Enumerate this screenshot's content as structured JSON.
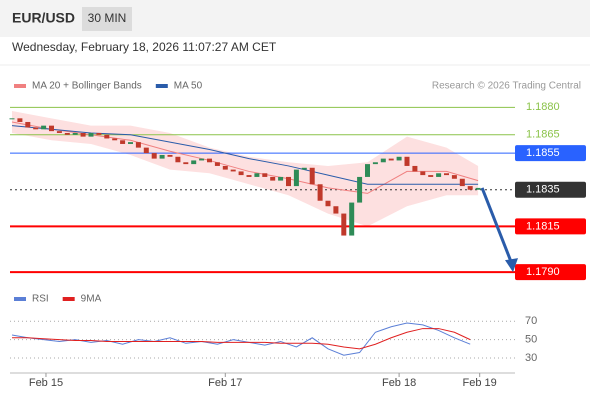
{
  "header": {
    "symbol": "EUR/USD",
    "interval": "30 MIN",
    "timestamp": "Wednesday, February 18, 2026 11:07:27 AM CET"
  },
  "chart_data": [
    {
      "type": "candlestick",
      "note": "Research © 2026 Trading Central",
      "values": [
        1.1874,
        1.1872,
        1.1869,
        1.1868,
        1.187,
        1.1867,
        1.1866,
        1.1865,
        1.1866,
        1.1864,
        1.1866,
        1.1865,
        1.1863,
        1.1862,
        1.186,
        1.1861,
        1.1858,
        1.1855,
        1.1852,
        1.1854,
        1.1853,
        1.185,
        1.1849,
        1.1851,
        1.1852,
        1.185,
        1.1848,
        1.1846,
        1.1845,
        1.1843,
        1.1842,
        1.1844,
        1.1842,
        1.184,
        1.1842,
        1.1837,
        1.1846,
        1.1847,
        1.1838,
        1.1829,
        1.1826,
        1.1822,
        1.181,
        1.1828,
        1.1842,
        1.1849,
        1.185,
        1.1852,
        1.1851,
        1.1853,
        1.1848,
        1.1845,
        1.1843,
        1.1842,
        1.1844,
        1.1843,
        1.1841,
        1.1837,
        1.1835,
        1.1836
      ],
      "up_color": "#2e8b57",
      "down_color": "#c0392b",
      "series": [
        {
          "name": "MA 20 + Bollinger Bands",
          "color": "#f08080",
          "band_color": "#fde0e0",
          "x": [
            0,
            5,
            10,
            15,
            20,
            25,
            30,
            35,
            40,
            45,
            50,
            55,
            59
          ],
          "values": [
            1.1872,
            1.1868,
            1.1865,
            1.1862,
            1.1856,
            1.1851,
            1.1845,
            1.1841,
            1.1836,
            1.1833,
            1.1845,
            1.1845,
            1.184
          ],
          "upper": [
            1.1878,
            1.1874,
            1.187,
            1.187,
            1.1866,
            1.1858,
            1.1853,
            1.185,
            1.1848,
            1.185,
            1.1864,
            1.1858,
            1.1848
          ],
          "lower": [
            1.1866,
            1.1862,
            1.186,
            1.1854,
            1.1846,
            1.1844,
            1.1838,
            1.1832,
            1.1822,
            1.1815,
            1.1826,
            1.1832,
            1.1832
          ]
        },
        {
          "name": "MA 50",
          "color": "#2a5caa",
          "x": [
            0,
            5,
            10,
            15,
            20,
            25,
            30,
            35,
            40,
            45,
            50,
            55,
            59
          ],
          "values": [
            1.187,
            1.1868,
            1.1866,
            1.1865,
            1.1861,
            1.1857,
            1.1852,
            1.1848,
            1.1843,
            1.1838,
            1.1838,
            1.1838,
            1.1838
          ]
        }
      ],
      "xlim": [
        0,
        64
      ],
      "ylim": [
        1.1783,
        1.1884
      ],
      "yticks": [
        {
          "value": 1.188,
          "label": "1.1880"
        },
        {
          "value": 1.1865,
          "label": "1.1865"
        },
        {
          "value": 1.1855,
          "label": "1.1855"
        },
        {
          "value": 1.1835,
          "label": "1.1835"
        },
        {
          "value": 1.1815,
          "label": "1.1815"
        },
        {
          "value": 1.179,
          "label": "1.1790"
        }
      ],
      "level_colors": [
        "#8bc34a",
        "#8bc34a",
        "#2962ff",
        "#333333",
        "#ff0000",
        "#ff0000"
      ],
      "level_boxed": [
        false,
        false,
        true,
        true,
        true,
        true
      ],
      "level_line": [
        "solid",
        "solid",
        "solid",
        "dotted",
        "solid",
        "solid"
      ],
      "arrow_color": "#2a5caa"
    },
    {
      "type": "line",
      "series": [
        {
          "name": "RSI",
          "color": "#5b7fd6",
          "x": [
            0,
            2,
            4,
            6,
            8,
            10,
            12,
            14,
            16,
            18,
            20,
            22,
            24,
            26,
            28,
            30,
            32,
            34,
            36,
            38,
            40,
            42,
            44,
            46,
            48,
            50,
            52,
            54,
            56,
            58
          ],
          "values": [
            55,
            52,
            50,
            48,
            50,
            47,
            49,
            45,
            50,
            48,
            52,
            46,
            48,
            45,
            50,
            47,
            44,
            48,
            42,
            52,
            40,
            33,
            36,
            58,
            64,
            68,
            66,
            60,
            52,
            45
          ]
        },
        {
          "name": "9MA",
          "color": "#e02020",
          "x": [
            0,
            2,
            4,
            6,
            8,
            10,
            12,
            14,
            16,
            18,
            20,
            22,
            24,
            26,
            28,
            30,
            32,
            34,
            36,
            38,
            40,
            42,
            44,
            46,
            48,
            50,
            52,
            54,
            56,
            58
          ],
          "values": [
            52,
            52,
            51,
            50,
            49,
            49,
            48,
            48,
            48,
            48,
            48,
            48,
            48,
            47,
            47,
            47,
            47,
            46,
            46,
            46,
            45,
            42,
            40,
            45,
            52,
            58,
            62,
            62,
            58,
            50
          ]
        }
      ],
      "xlim": [
        0,
        64
      ],
      "ylim": [
        17,
        80
      ],
      "yticks": [
        70,
        50,
        30
      ],
      "grid": true,
      "xticks": [
        {
          "value": 4.3,
          "label": "Feb 15"
        },
        {
          "value": 27,
          "label": "Feb 17"
        },
        {
          "value": 49,
          "label": "Feb 18"
        },
        {
          "value": 59.2,
          "label": "Feb 19"
        }
      ]
    }
  ]
}
